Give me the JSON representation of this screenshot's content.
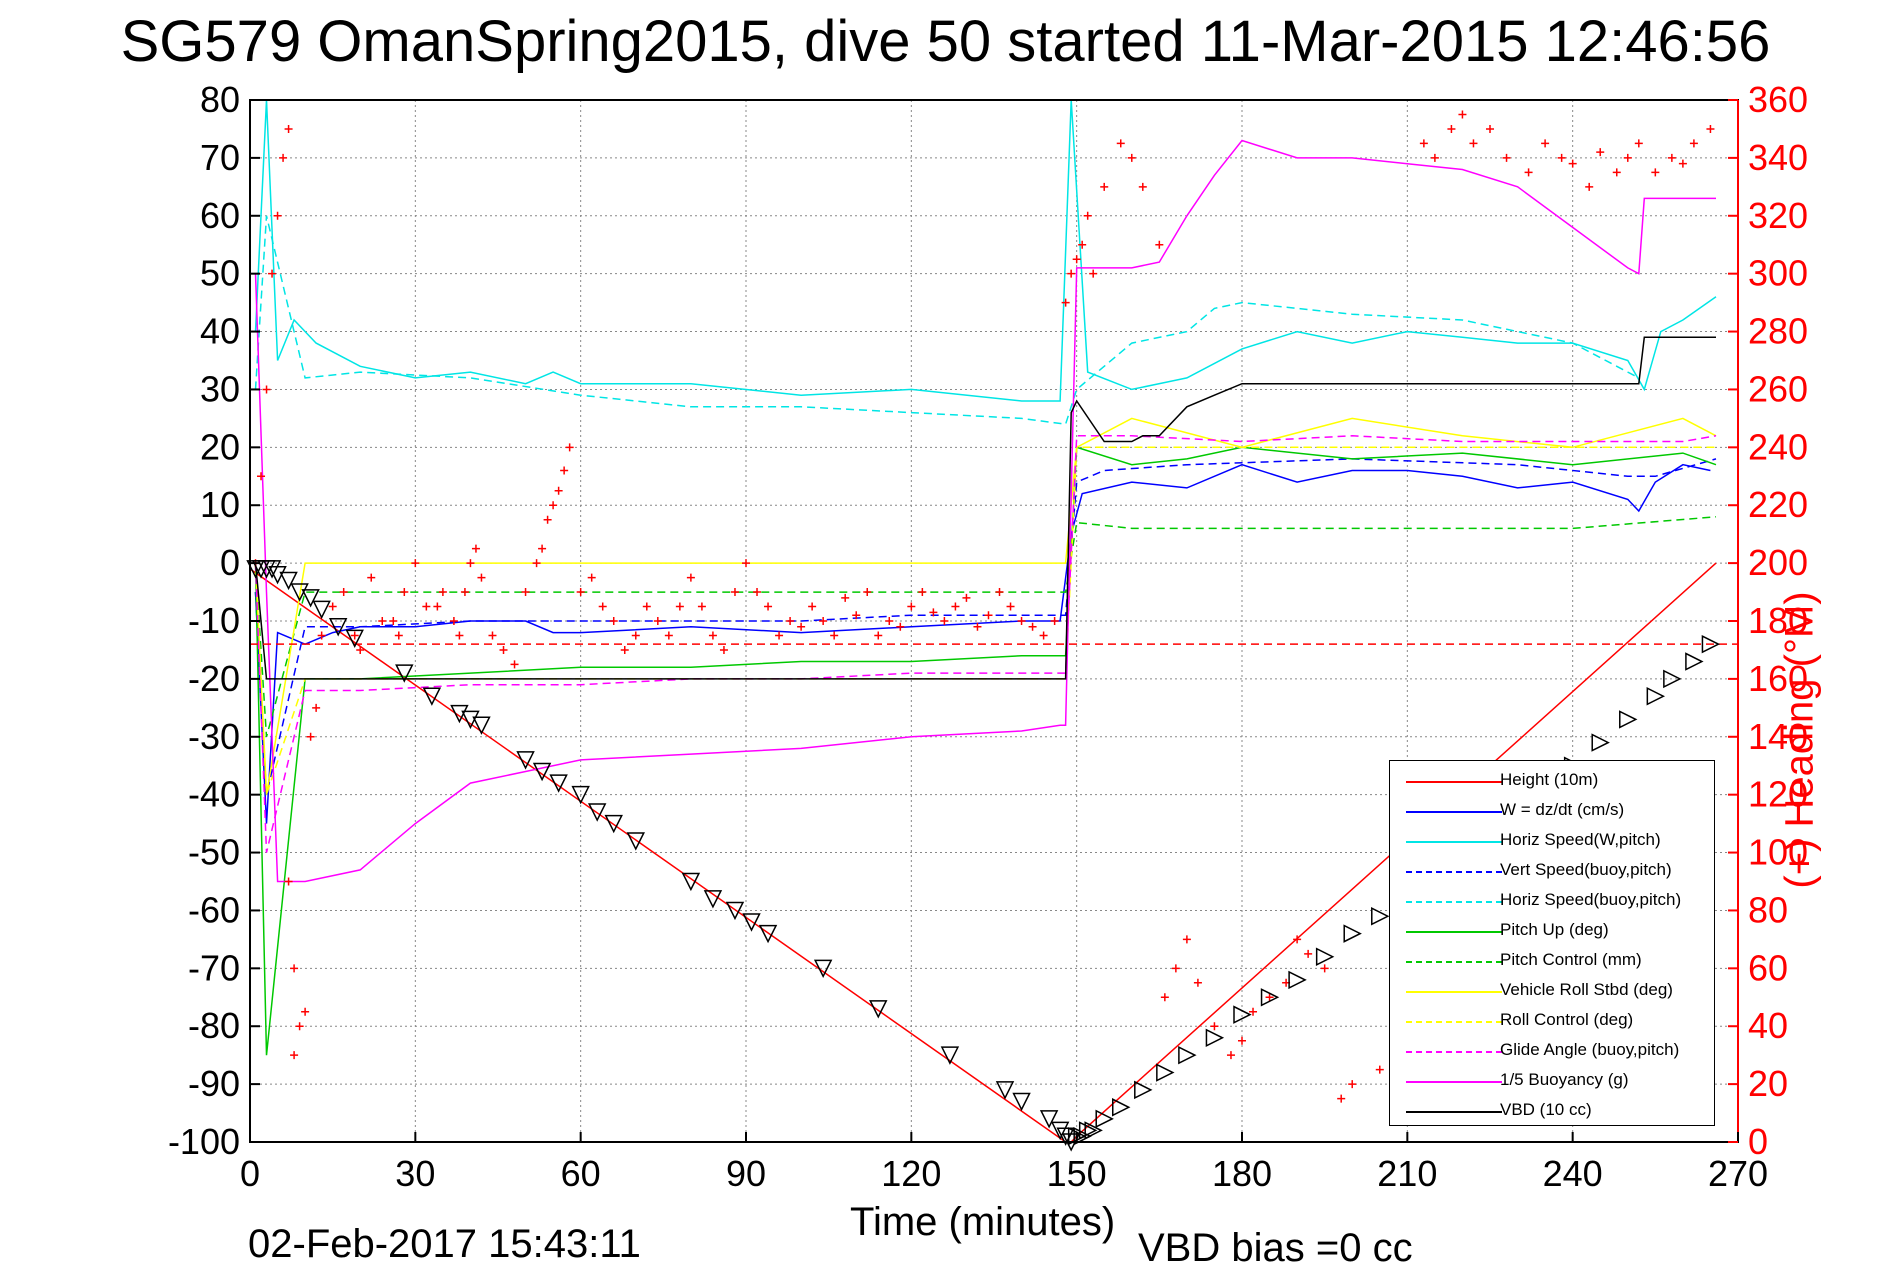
{
  "title": "SG579 OmanSpring2015, dive 50 started 11-Mar-2015 12:46:56",
  "footer": {
    "date": "02-Feb-2017 15:43:11",
    "vbd_bias": "VBD bias =0 cc"
  },
  "chart_data": {
    "type": "line",
    "title": "SG579 OmanSpring2015, dive 50 started 11-Mar-2015 12:46:56",
    "xlabel": "Time (minutes)",
    "ylabel": "",
    "ylabel_right": "(+) Heading (°M)",
    "xlim": [
      0,
      270
    ],
    "ylim": [
      -100,
      80
    ],
    "ylim_right": [
      0,
      360
    ],
    "x_ticks": [
      "0",
      "30",
      "60",
      "90",
      "120",
      "150",
      "180",
      "210",
      "240",
      "270"
    ],
    "y_ticks": [
      "80",
      "70",
      "60",
      "50",
      "40",
      "30",
      "20",
      "10",
      "0",
      "-10",
      "-20",
      "-30",
      "-40",
      "-50",
      "-60",
      "-70",
      "-80",
      "-90",
      "-100"
    ],
    "y_right_ticks": [
      "360",
      "340",
      "320",
      "300",
      "280",
      "260",
      "240",
      "220",
      "200",
      "180",
      "160",
      "140",
      "120",
      "100",
      "80",
      "60",
      "40",
      "20",
      "0"
    ],
    "grid": true,
    "legend_position": "bottom-right",
    "series": [
      {
        "name": "Height (10m)",
        "color": "#ff0000",
        "style": "solid",
        "x": [
          0,
          148,
          149,
          150,
          266
        ],
        "y": [
          -1,
          -100,
          -100,
          -99,
          0
        ]
      },
      {
        "name": "W = dz/dt (cm/s)",
        "color": "#0000ff",
        "style": "solid",
        "x": [
          1,
          3,
          5,
          10,
          15,
          20,
          30,
          40,
          50,
          55,
          60,
          80,
          100,
          120,
          140,
          147,
          149,
          151,
          160,
          170,
          180,
          190,
          200,
          210,
          220,
          230,
          240,
          250,
          252,
          255,
          260,
          265
        ],
        "y": [
          -5,
          -45,
          -12,
          -14,
          -12,
          -11,
          -11,
          -10,
          -10,
          -12,
          -12,
          -11,
          -12,
          -11,
          -10,
          -10,
          5,
          12,
          14,
          13,
          17,
          14,
          16,
          16,
          15,
          13,
          14,
          11,
          9,
          14,
          17,
          16
        ]
      },
      {
        "name": "Horiz Speed(W,pitch)",
        "color": "#00e5e5",
        "style": "solid",
        "x": [
          1,
          3,
          5,
          8,
          12,
          20,
          30,
          40,
          50,
          55,
          60,
          80,
          100,
          120,
          140,
          147,
          149,
          152,
          160,
          170,
          180,
          190,
          200,
          210,
          220,
          230,
          240,
          250,
          253,
          256,
          260,
          266
        ],
        "y": [
          40,
          80,
          35,
          42,
          38,
          34,
          32,
          33,
          31,
          33,
          31,
          31,
          29,
          30,
          28,
          28,
          80,
          33,
          30,
          32,
          37,
          40,
          38,
          40,
          39,
          38,
          38,
          35,
          30,
          40,
          42,
          46
        ]
      },
      {
        "name": "Vert Speed(buoy,pitch)",
        "color": "#0000ff",
        "style": "dashed",
        "x": [
          1,
          3,
          10,
          20,
          40,
          60,
          80,
          100,
          120,
          140,
          148,
          150,
          155,
          170,
          200,
          230,
          250,
          255,
          266
        ],
        "y": [
          -5,
          -40,
          -11,
          -11,
          -10,
          -10,
          -10,
          -10,
          -9,
          -9,
          -9,
          14,
          16,
          17,
          18,
          17,
          15,
          15,
          18
        ]
      },
      {
        "name": "Horiz Speed(buoy,pitch)",
        "color": "#00e5e5",
        "style": "dashed",
        "x": [
          1,
          3,
          10,
          20,
          40,
          60,
          80,
          100,
          120,
          140,
          148,
          150,
          160,
          170,
          175,
          180,
          200,
          220,
          240,
          252
        ],
        "y": [
          30,
          60,
          32,
          33,
          32,
          29,
          27,
          27,
          26,
          25,
          24,
          30,
          38,
          40,
          44,
          45,
          43,
          42,
          38,
          32
        ]
      },
      {
        "name": "Pitch Up (deg)",
        "color": "#00c800",
        "style": "solid",
        "x": [
          1,
          3,
          10,
          20,
          40,
          60,
          80,
          100,
          120,
          140,
          148,
          150,
          160,
          170,
          180,
          200,
          220,
          240,
          260,
          266
        ],
        "y": [
          0,
          -85,
          -20,
          -20,
          -19,
          -18,
          -18,
          -17,
          -17,
          -16,
          -16,
          20,
          17,
          18,
          20,
          18,
          19,
          17,
          19,
          17
        ]
      },
      {
        "name": "Pitch Control (mm)",
        "color": "#00c800",
        "style": "dashed",
        "x": [
          1,
          3,
          10,
          20,
          40,
          60,
          80,
          100,
          120,
          140,
          148,
          150,
          160,
          180,
          200,
          220,
          240,
          266
        ],
        "y": [
          0,
          -30,
          -5,
          -5,
          -5,
          -5,
          -5,
          -5,
          -5,
          -5,
          -5,
          7,
          6,
          6,
          6,
          6,
          6,
          8
        ]
      },
      {
        "name": "Vehicle Roll Stbd (deg)",
        "color": "#ffff00",
        "style": "solid",
        "x": [
          1,
          3,
          10,
          20,
          40,
          60,
          80,
          100,
          120,
          140,
          148,
          150,
          160,
          180,
          200,
          220,
          240,
          260,
          266
        ],
        "y": [
          0,
          -40,
          0,
          0,
          0,
          0,
          0,
          0,
          0,
          0,
          0,
          20,
          25,
          20,
          25,
          22,
          20,
          25,
          22
        ]
      },
      {
        "name": "Roll Control (deg)",
        "color": "#ffff00",
        "style": "dashed",
        "x": [
          1,
          3,
          10,
          30,
          60,
          90,
          120,
          148,
          150,
          170,
          200,
          230,
          260,
          266
        ],
        "y": [
          0,
          -40,
          -20,
          -20,
          -20,
          -20,
          -20,
          -20,
          20,
          20,
          20,
          20,
          20,
          20
        ]
      },
      {
        "name": "Glide Angle (buoy,pitch)",
        "color": "#ff00ff",
        "style": "dashed",
        "x": [
          1,
          3,
          10,
          20,
          40,
          60,
          80,
          100,
          120,
          140,
          148,
          150,
          160,
          180,
          200,
          220,
          240,
          260,
          266
        ],
        "y": [
          0,
          -50,
          -22,
          -22,
          -21,
          -21,
          -20,
          -20,
          -19,
          -19,
          -19,
          22,
          22,
          21,
          22,
          21,
          21,
          21,
          22
        ]
      },
      {
        "name": "1/5 Buoyancy (g)",
        "color": "#ff00ff",
        "style": "solid",
        "x": [
          1,
          3,
          5,
          10,
          20,
          30,
          40,
          50,
          60,
          80,
          100,
          120,
          140,
          147,
          148,
          150,
          155,
          160,
          165,
          170,
          175,
          180,
          190,
          200,
          210,
          220,
          230,
          240,
          250,
          252,
          253,
          266
        ],
        "y": [
          50,
          -5,
          -55,
          -55,
          -53,
          -45,
          -38,
          -36,
          -34,
          -33,
          -32,
          -30,
          -29,
          -28,
          -28,
          51,
          51,
          51,
          52,
          60,
          67,
          73,
          70,
          70,
          69,
          68,
          65,
          58,
          51,
          50,
          63,
          63
        ]
      },
      {
        "name": "VBD (10 cc)",
        "color": "#000000",
        "style": "solid",
        "x": [
          1,
          3,
          5,
          10,
          20,
          40,
          60,
          80,
          100,
          120,
          140,
          147,
          148,
          149,
          150,
          155,
          160,
          162,
          165,
          170,
          175,
          180,
          190,
          200,
          210,
          220,
          230,
          240,
          250,
          252,
          253,
          266
        ],
        "y": [
          0,
          -20,
          -20,
          -20,
          -20,
          -20,
          -20,
          -20,
          -20,
          -20,
          -20,
          -20,
          -20,
          26,
          28,
          21,
          21,
          22,
          22,
          27,
          29,
          31,
          31,
          31,
          31,
          31,
          31,
          31,
          31,
          31,
          39,
          39
        ]
      }
    ],
    "heading": {
      "name": "(+) Heading (°M)",
      "color": "#ff0000",
      "marker": "+",
      "axis": "right",
      "mean_line": {
        "value": 172,
        "style": "dashed"
      },
      "x": [
        1,
        2,
        3,
        4,
        5,
        6,
        7,
        7,
        8,
        8,
        9,
        10,
        11,
        12,
        13,
        15,
        17,
        19,
        20,
        22,
        24,
        26,
        27,
        28,
        30,
        32,
        34,
        35,
        37,
        38,
        39,
        40,
        41,
        42,
        44,
        46,
        48,
        50,
        52,
        53,
        54,
        55,
        56,
        57,
        58,
        60,
        62,
        64,
        66,
        68,
        70,
        72,
        74,
        76,
        78,
        80,
        82,
        84,
        86,
        88,
        90,
        92,
        94,
        96,
        98,
        100,
        102,
        104,
        106,
        108,
        110,
        112,
        114,
        116,
        118,
        120,
        122,
        124,
        126,
        128,
        130,
        132,
        134,
        136,
        138,
        140,
        142,
        144,
        146,
        148,
        149,
        150,
        151,
        152,
        153,
        155,
        158,
        160,
        162,
        165,
        166,
        168,
        170,
        172,
        175,
        178,
        180,
        182,
        185,
        188,
        190,
        192,
        195,
        198,
        200,
        205,
        208,
        210,
        213,
        215,
        218,
        220,
        222,
        225,
        228,
        232,
        235,
        238,
        240,
        243,
        245,
        248,
        250,
        252,
        255,
        258,
        260,
        262,
        265
      ],
      "y": [
        200,
        230,
        260,
        300,
        320,
        340,
        350,
        90,
        60,
        30,
        40,
        45,
        140,
        150,
        175,
        185,
        190,
        175,
        170,
        195,
        180,
        180,
        175,
        190,
        200,
        185,
        185,
        190,
        180,
        175,
        190,
        200,
        205,
        195,
        175,
        170,
        165,
        190,
        200,
        205,
        215,
        220,
        225,
        232,
        240,
        190,
        195,
        185,
        180,
        170,
        175,
        185,
        180,
        175,
        185,
        195,
        185,
        175,
        170,
        190,
        200,
        190,
        185,
        175,
        180,
        178,
        185,
        180,
        175,
        188,
        182,
        190,
        175,
        180,
        178,
        185,
        190,
        183,
        180,
        185,
        188,
        178,
        182,
        190,
        185,
        180,
        178,
        175,
        180,
        290,
        300,
        305,
        310,
        320,
        300,
        330,
        345,
        340,
        330,
        310,
        50,
        60,
        70,
        55,
        40,
        30,
        35,
        45,
        50,
        55,
        70,
        65,
        60,
        15,
        20,
        25,
        10,
        30,
        345,
        340,
        350,
        355,
        345,
        350,
        340,
        335,
        345,
        340,
        338,
        330,
        342,
        335,
        340,
        345,
        335,
        340,
        338,
        345,
        350
      ]
    },
    "dive_markers": {
      "color": "#000000",
      "shape": "triangle",
      "x": [
        1,
        2,
        3,
        4,
        5,
        7,
        9,
        11,
        13,
        16,
        19,
        28,
        33,
        38,
        40,
        42,
        50,
        53,
        56,
        60,
        63,
        66,
        70,
        80,
        84,
        88,
        91,
        94,
        104,
        114,
        127,
        137,
        140,
        145,
        147,
        148,
        149,
        150,
        151,
        152,
        153,
        155,
        158,
        162,
        166,
        170,
        175,
        180,
        185,
        190,
        195,
        200,
        205,
        210,
        215,
        220,
        225,
        230,
        235,
        240,
        245,
        250,
        255,
        258,
        262,
        265
      ],
      "y": [
        -1,
        -1,
        -1,
        -1,
        -2,
        -3,
        -5,
        -6,
        -8,
        -11,
        -13,
        -19,
        -23,
        -26,
        -27,
        -28,
        -34,
        -36,
        -38,
        -40,
        -43,
        -45,
        -48,
        -55,
        -58,
        -60,
        -62,
        -64,
        -70,
        -77,
        -85,
        -91,
        -93,
        -96,
        -98,
        -99,
        -100,
        -99,
        -99,
        -98,
        -98,
        -96,
        -94,
        -91,
        -88,
        -85,
        -82,
        -78,
        -75,
        -72,
        -68,
        -64,
        -61,
        -57,
        -53,
        -50,
        -46,
        -43,
        -39,
        -35,
        -31,
        -27,
        -23,
        -20,
        -17,
        -14
      ]
    }
  }
}
